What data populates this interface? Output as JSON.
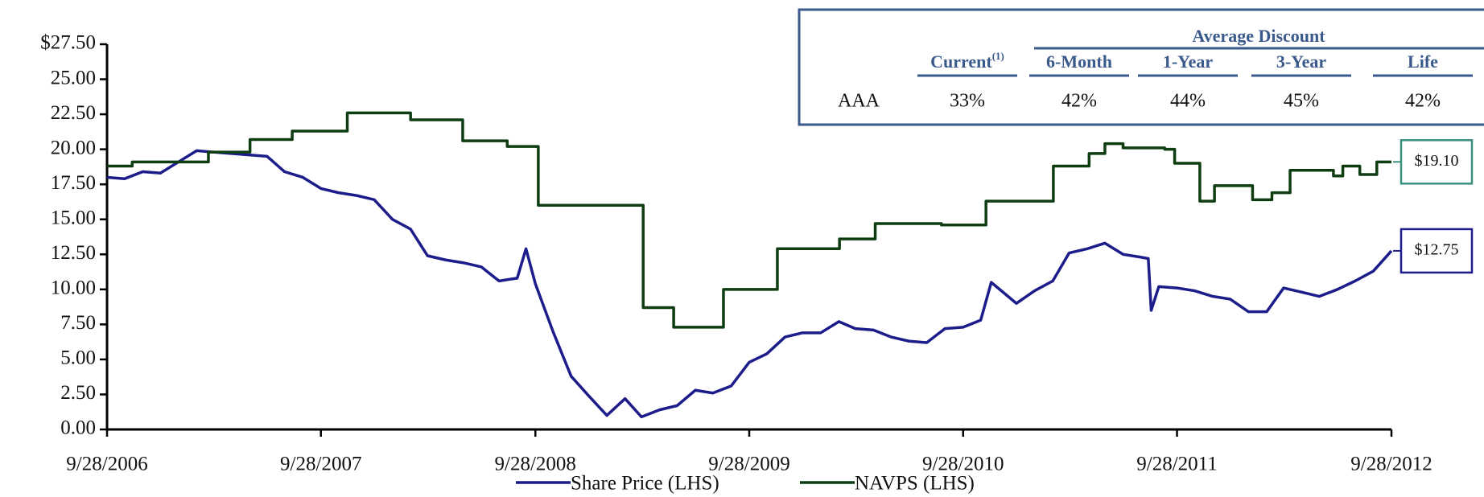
{
  "chart_data": {
    "type": "line",
    "xlim": [
      "2006-09-28",
      "2012-09-28"
    ],
    "xticks": [
      {
        "value": "2006-09-28",
        "label": "9/28/2006"
      },
      {
        "value": "2007-09-28",
        "label": "9/28/2007"
      },
      {
        "value": "2008-09-28",
        "label": "9/28/2008"
      },
      {
        "value": "2009-09-28",
        "label": "9/28/2009"
      },
      {
        "value": "2010-09-28",
        "label": "9/28/2010"
      },
      {
        "value": "2011-09-28",
        "label": "9/28/2011"
      },
      {
        "value": "2012-09-28",
        "label": "9/28/2012"
      }
    ],
    "ylim": [
      0,
      27.5
    ],
    "yticks": [
      {
        "value": 0,
        "label": "0.00"
      },
      {
        "value": 2.5,
        "label": "2.50"
      },
      {
        "value": 5,
        "label": "5.00"
      },
      {
        "value": 7.5,
        "label": "7.50"
      },
      {
        "value": 10,
        "label": "10.00"
      },
      {
        "value": 12.5,
        "label": "12.50"
      },
      {
        "value": 15,
        "label": "15.00"
      },
      {
        "value": 17.5,
        "label": "17.50"
      },
      {
        "value": 20,
        "label": "20.00"
      },
      {
        "value": 22.5,
        "label": "22.50"
      },
      {
        "value": 25,
        "label": "25.00"
      },
      {
        "value": 27.5,
        "label": "$27.50"
      }
    ],
    "legend": "bottom",
    "series": [
      {
        "name": "Share Price (LHS)",
        "color": "#1c1c8a",
        "step": false,
        "end_label": "$12.75",
        "label_border": "#1c1c8a",
        "x": [
          "2006-09-28",
          "2006-10-28",
          "2006-11-28",
          "2006-12-28",
          "2007-01-28",
          "2007-02-28",
          "2007-03-28",
          "2007-04-28",
          "2007-05-28",
          "2007-06-28",
          "2007-07-28",
          "2007-08-28",
          "2007-09-28",
          "2007-10-28",
          "2007-11-28",
          "2007-12-28",
          "2008-01-28",
          "2008-02-28",
          "2008-03-28",
          "2008-04-28",
          "2008-05-28",
          "2008-06-28",
          "2008-07-28",
          "2008-08-28",
          "2008-09-12",
          "2008-09-28",
          "2008-10-28",
          "2008-11-28",
          "2008-12-28",
          "2009-01-28",
          "2009-02-28",
          "2009-03-28",
          "2009-04-28",
          "2009-05-28",
          "2009-06-28",
          "2009-07-28",
          "2009-08-28",
          "2009-09-28",
          "2009-10-28",
          "2009-11-28",
          "2009-12-28",
          "2010-01-28",
          "2010-02-28",
          "2010-03-28",
          "2010-04-28",
          "2010-05-28",
          "2010-06-28",
          "2010-07-28",
          "2010-08-28",
          "2010-09-28",
          "2010-10-28",
          "2010-11-15",
          "2010-12-28",
          "2011-01-28",
          "2011-02-28",
          "2011-03-28",
          "2011-04-28",
          "2011-05-28",
          "2011-06-28",
          "2011-07-28",
          "2011-08-10",
          "2011-08-15",
          "2011-08-28",
          "2011-09-28",
          "2011-10-28",
          "2011-11-28",
          "2011-12-28",
          "2012-01-28",
          "2012-02-28",
          "2012-03-28",
          "2012-04-28",
          "2012-05-28",
          "2012-06-28",
          "2012-07-28",
          "2012-08-28",
          "2012-09-28"
        ],
        "values": [
          18.0,
          17.9,
          18.4,
          18.3,
          19.1,
          19.9,
          19.8,
          19.7,
          19.6,
          19.5,
          18.4,
          18.0,
          17.2,
          16.9,
          16.7,
          16.4,
          15.0,
          14.3,
          12.4,
          12.1,
          11.9,
          11.6,
          10.6,
          10.8,
          12.9,
          10.4,
          7.0,
          3.8,
          2.4,
          1.0,
          2.2,
          0.9,
          1.4,
          1.7,
          2.8,
          2.6,
          3.1,
          4.8,
          5.4,
          6.6,
          6.9,
          6.9,
          7.7,
          7.2,
          7.1,
          6.6,
          6.3,
          6.2,
          7.2,
          7.3,
          7.8,
          10.5,
          9.0,
          9.9,
          10.6,
          12.6,
          12.9,
          13.3,
          12.5,
          12.3,
          12.2,
          8.5,
          10.2,
          10.1,
          9.9,
          9.5,
          9.3,
          8.4,
          8.4,
          10.1,
          9.8,
          9.5,
          10.0,
          10.6,
          11.3,
          12.75
        ]
      },
      {
        "name": "NAVPS (LHS)",
        "color": "#0f3d12",
        "step": true,
        "end_label": "$19.10",
        "label_border": "#3a8f7f",
        "x": [
          "2006-09-28",
          "2006-11-10",
          "2007-03-20",
          "2007-05-30",
          "2007-08-10",
          "2007-11-12",
          "2008-02-28",
          "2008-05-27",
          "2008-08-11",
          "2008-10-03",
          "2009-03-31",
          "2009-05-22",
          "2009-08-15",
          "2009-11-15",
          "2010-03-01",
          "2010-05-01",
          "2010-08-22",
          "2010-11-06",
          "2011-03-01",
          "2011-05-01",
          "2011-05-28",
          "2011-06-28",
          "2011-09-07",
          "2011-09-24",
          "2011-11-06",
          "2011-12-01",
          "2012-02-04",
          "2012-03-08",
          "2012-04-08",
          "2012-06-21",
          "2012-07-07",
          "2012-08-05",
          "2012-09-03",
          "2012-09-28"
        ],
        "values": [
          18.8,
          19.1,
          19.8,
          20.7,
          21.3,
          22.6,
          22.1,
          20.6,
          20.2,
          16.0,
          8.7,
          7.3,
          10.0,
          12.9,
          13.6,
          14.7,
          14.6,
          16.3,
          18.8,
          19.7,
          20.4,
          20.1,
          20.0,
          19.0,
          16.3,
          17.4,
          16.4,
          16.9,
          18.5,
          18.1,
          18.8,
          18.2,
          19.1,
          19.1
        ]
      }
    ]
  },
  "table": {
    "title": "Average Discount",
    "columns": [
      {
        "label": "Current",
        "sup": "(1)"
      },
      {
        "label": "6-Month"
      },
      {
        "label": "1-Year"
      },
      {
        "label": "3-Year"
      },
      {
        "label": "Life"
      }
    ],
    "rows": [
      [
        "AAA",
        "33%",
        "42%",
        "44%",
        "45%",
        "42%"
      ]
    ]
  }
}
